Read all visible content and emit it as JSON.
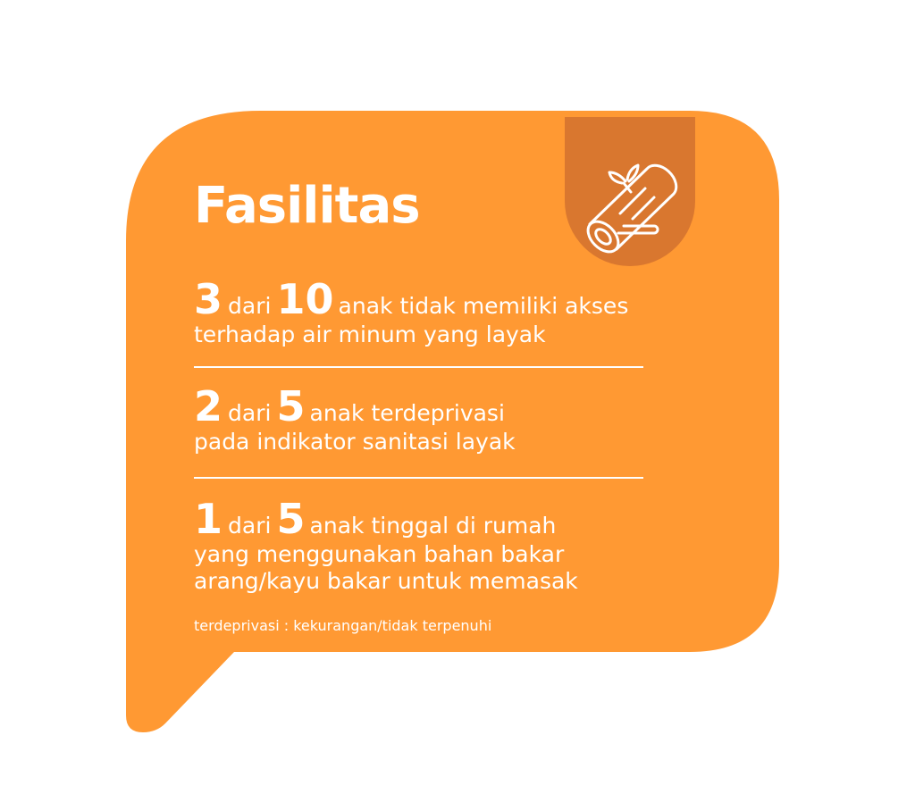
{
  "card": {
    "title": "Fasilitas",
    "icon": "log-wood-icon",
    "bubble_color": "#FF9933",
    "tab_color": "#D9772F",
    "text_color": "#FFFFFF"
  },
  "stats": [
    {
      "num1": "3",
      "joiner": "dari",
      "num2": "10",
      "text": "anak tidak memiliki akses",
      "continuation": [
        "terhadap air minum yang layak"
      ]
    },
    {
      "num1": "2",
      "joiner": "dari",
      "num2": "5",
      "text": "anak terdeprivasi",
      "continuation": [
        "pada indikator sanitasi layak"
      ]
    },
    {
      "num1": "1",
      "joiner": "dari",
      "num2": "5",
      "text": "anak tinggal di rumah",
      "continuation": [
        "yang menggunakan bahan bakar",
        "arang/kayu bakar untuk memasak"
      ]
    }
  ],
  "footnote": "terdeprivasi : kekurangan/tidak terpenuhi"
}
